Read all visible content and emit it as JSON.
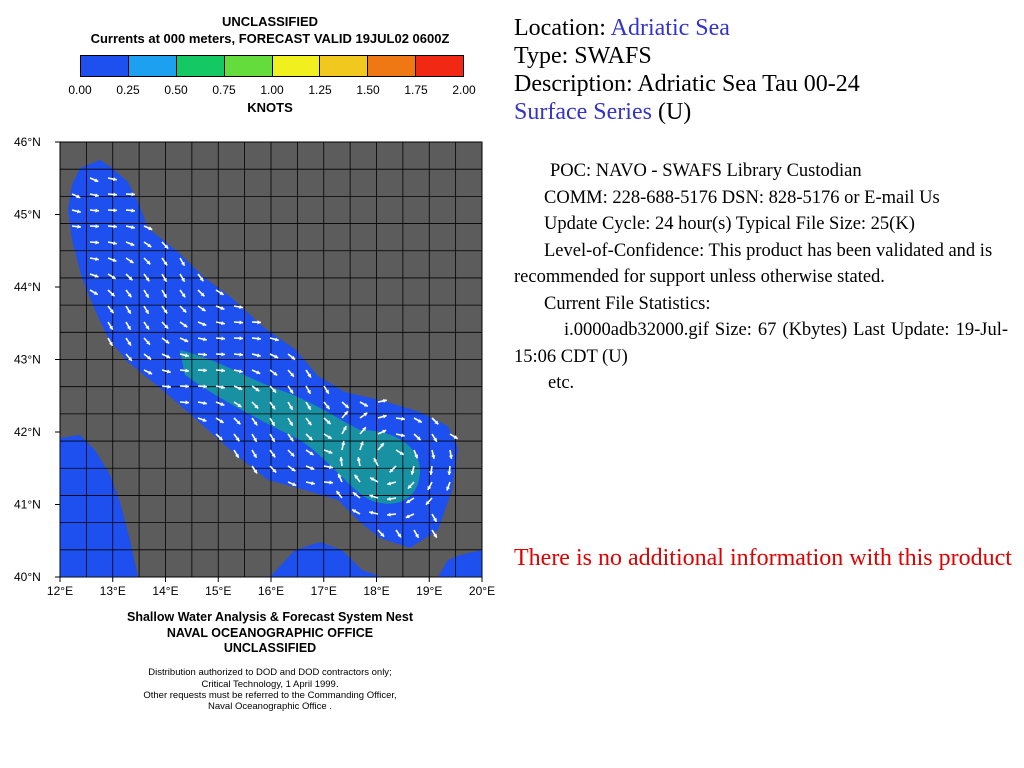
{
  "figure": {
    "header_line1": "UNCLASSIFIED",
    "header_line2": "Currents at 000 meters, FORECAST VALID 19JUL02 0600Z",
    "colorbar": {
      "colors": [
        "#1e50f0",
        "#1ea0f0",
        "#14c864",
        "#64dc3c",
        "#f0f01e",
        "#f0c81e",
        "#f07814",
        "#f02814"
      ],
      "ticks": [
        "0.00",
        "0.25",
        "0.50",
        "0.75",
        "1.00",
        "1.25",
        "1.50",
        "1.75",
        "2.00"
      ],
      "unit": "KNOTS"
    },
    "lat_labels": [
      "46°N",
      "45°N",
      "44°N",
      "43°N",
      "42°N",
      "41°N",
      "40°N"
    ],
    "lon_labels": [
      "12°E",
      "13°E",
      "14°E",
      "15°E",
      "16°E",
      "17°E",
      "18°E",
      "19°E",
      "20°E"
    ],
    "footer_line1": "Shallow Water Analysis & Forecast System Nest",
    "footer_line2": "NAVAL OCEANOGRAPHIC OFFICE",
    "footer_line3": "UNCLASSIFIED",
    "dist_line1": "Distribution authorized to DOD and DOD contractors only;",
    "dist_line2": "Critical Technology, 1 April 1999.",
    "dist_line3": "Other requests must be referred to the Commanding Officer,",
    "dist_line4": "Naval Oceanographic Office .",
    "colors": {
      "land": "#5c5c5c",
      "sea": "#1e50f0",
      "grid": "#000000",
      "arrow": "#ffffff"
    }
  },
  "info": {
    "location_label": "Location:",
    "location_value": "Adriatic Sea",
    "type_line": "Type: SWAFS",
    "description_line": "Description: Adriatic Sea Tau 00-24",
    "series_link": "Surface Series",
    "series_suffix": " (U)"
  },
  "details": {
    "poc": "POC: NAVO - SWAFS Library Custodian",
    "comm": "COMM: 228-688-5176    DSN: 828-5176    or    E-mail Us",
    "update_cycle": "Update Cycle: 24 hour(s)    Typical File Size: 25(K)",
    "confidence": "Level-of-Confidence: This product has been validated and is recommended for support unless otherwise stated.",
    "stats_heading": "Current File Statistics:",
    "stats_file": "i.0000adb32000.gif    Size:  67 (Kbytes)     Last Update:  19-Jul-15:06 CDT (U)",
    "etc": "etc."
  },
  "note": "There is no additional information with this product"
}
